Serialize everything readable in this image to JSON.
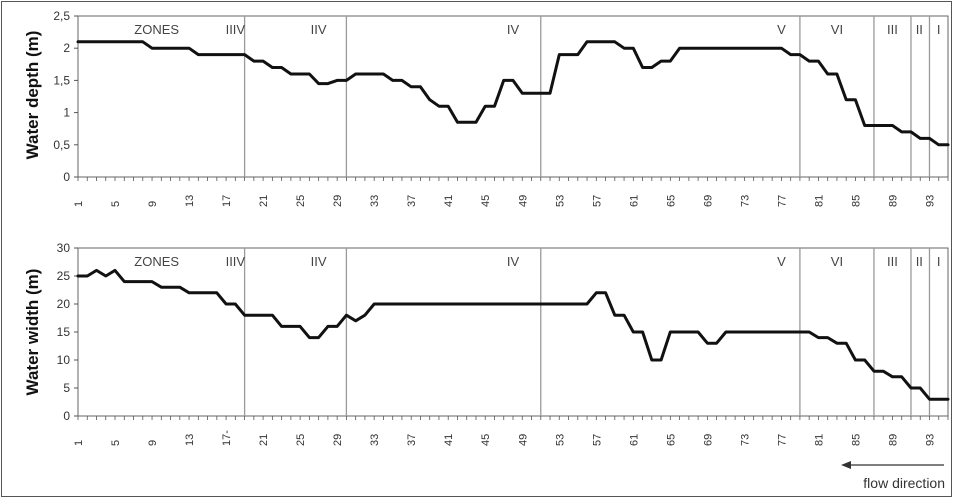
{
  "chart_data": [
    {
      "type": "line",
      "ylabel": "Water depth (m)",
      "ylim": [
        0,
        2.5
      ],
      "y_ticks": [
        "0",
        "0,5",
        "1",
        "1,5",
        "2",
        "2,5"
      ],
      "x_ticks": [
        "1",
        "5",
        "9",
        "13",
        "17",
        "21",
        "25",
        "29",
        "33",
        "37",
        "41",
        "45",
        "49",
        "53",
        "57",
        "61",
        "65",
        "69",
        "73",
        "77",
        "81",
        "85",
        "89",
        "93"
      ],
      "xlim": [
        1,
        95
      ],
      "zone_boundaries": [
        19,
        30,
        51,
        79,
        87,
        91,
        93
      ],
      "zone_header": "ZONES",
      "zone_labels": [
        {
          "label": "IIIV",
          "x": 18
        },
        {
          "label": "IIV",
          "x": 27
        },
        {
          "label": "IV",
          "x": 48
        },
        {
          "label": "V",
          "x": 77
        },
        {
          "label": "VI",
          "x": 83
        },
        {
          "label": "III",
          "x": 89
        },
        {
          "label": "II",
          "x": 91.9
        },
        {
          "label": "I",
          "x": 94
        }
      ],
      "series": [
        {
          "x": [
            1,
            2,
            3,
            4,
            5,
            6,
            7,
            8,
            9,
            10,
            11,
            12,
            13,
            14,
            15,
            16,
            17,
            18,
            19,
            20,
            21,
            22,
            23,
            24,
            25,
            26,
            27,
            28,
            29,
            30,
            31,
            32,
            33,
            34,
            35,
            36,
            37,
            38,
            39,
            40,
            41,
            42,
            43,
            44,
            45,
            46,
            47,
            48,
            49,
            50,
            51,
            52,
            53,
            54,
            55,
            56,
            57,
            58,
            59,
            60,
            61,
            62,
            63,
            64,
            65,
            66,
            67,
            68,
            69,
            70,
            71,
            72,
            73,
            74,
            75,
            76,
            77,
            78,
            79,
            80,
            81,
            82,
            83,
            84,
            85,
            86,
            87,
            88,
            89,
            90,
            91,
            92,
            93,
            94,
            95
          ],
          "values": [
            2.1,
            2.1,
            2.1,
            2.1,
            2.1,
            2.1,
            2.1,
            2.1,
            2.0,
            2.0,
            2.0,
            2.0,
            2.0,
            1.9,
            1.9,
            1.9,
            1.9,
            1.9,
            1.9,
            1.8,
            1.8,
            1.7,
            1.7,
            1.6,
            1.6,
            1.6,
            1.45,
            1.45,
            1.5,
            1.5,
            1.6,
            1.6,
            1.6,
            1.6,
            1.5,
            1.5,
            1.4,
            1.4,
            1.2,
            1.1,
            1.1,
            0.85,
            0.85,
            0.85,
            1.1,
            1.1,
            1.5,
            1.5,
            1.3,
            1.3,
            1.3,
            1.3,
            1.9,
            1.9,
            1.9,
            2.1,
            2.1,
            2.1,
            2.1,
            2.0,
            2.0,
            1.7,
            1.7,
            1.8,
            1.8,
            2.0,
            2.0,
            2.0,
            2.0,
            2.0,
            2.0,
            2.0,
            2.0,
            2.0,
            2.0,
            2.0,
            2.0,
            1.9,
            1.9,
            1.8,
            1.8,
            1.6,
            1.6,
            1.2,
            1.2,
            0.8,
            0.8,
            0.8,
            0.8,
            0.7,
            0.7,
            0.6,
            0.6,
            0.5,
            0.5
          ]
        }
      ]
    },
    {
      "type": "line",
      "ylabel": "Water width (m)",
      "ylim": [
        0,
        30
      ],
      "y_ticks": [
        "0",
        "5",
        "10",
        "15",
        "20",
        "25",
        "30"
      ],
      "x_ticks": [
        "1",
        "5",
        "9",
        "13",
        "17-",
        "21",
        "25",
        "29",
        "33",
        "37",
        "41",
        "45",
        "49",
        "53",
        "57",
        "61",
        "65",
        "69",
        "73",
        "77",
        "81",
        "85",
        "89",
        "93"
      ],
      "xlim": [
        1,
        95
      ],
      "zone_boundaries": [
        19,
        30,
        51,
        79,
        87,
        91,
        93
      ],
      "zone_header": "ZONES",
      "zone_labels": [
        {
          "label": "IIIV",
          "x": 18
        },
        {
          "label": "IIV",
          "x": 27
        },
        {
          "label": "IV",
          "x": 48
        },
        {
          "label": "V",
          "x": 77
        },
        {
          "label": "VI",
          "x": 83
        },
        {
          "label": "III",
          "x": 89
        },
        {
          "label": "II",
          "x": 91.9
        },
        {
          "label": "I",
          "x": 94
        }
      ],
      "series": [
        {
          "x": [
            1,
            2,
            3,
            4,
            5,
            6,
            7,
            8,
            9,
            10,
            11,
            12,
            13,
            14,
            15,
            16,
            17,
            18,
            19,
            20,
            21,
            22,
            23,
            24,
            25,
            26,
            27,
            28,
            29,
            30,
            31,
            32,
            33,
            34,
            35,
            36,
            37,
            38,
            39,
            40,
            41,
            42,
            43,
            44,
            45,
            46,
            47,
            48,
            49,
            50,
            51,
            52,
            53,
            54,
            55,
            56,
            57,
            58,
            59,
            60,
            61,
            62,
            63,
            64,
            65,
            66,
            67,
            68,
            69,
            70,
            71,
            72,
            73,
            74,
            75,
            76,
            77,
            78,
            79,
            80,
            81,
            82,
            83,
            84,
            85,
            86,
            87,
            88,
            89,
            90,
            91,
            92,
            93,
            94,
            95
          ],
          "values": [
            25,
            25,
            26,
            25,
            26,
            24,
            24,
            24,
            24,
            23,
            23,
            23,
            22,
            22,
            22,
            22,
            20,
            20,
            18,
            18,
            18,
            18,
            16,
            16,
            16,
            14,
            14,
            16,
            16,
            18,
            17,
            18,
            20,
            20,
            20,
            20,
            20,
            20,
            20,
            20,
            20,
            20,
            20,
            20,
            20,
            20,
            20,
            20,
            20,
            20,
            20,
            20,
            20,
            20,
            20,
            20,
            22,
            22,
            18,
            18,
            15,
            15,
            10,
            10,
            15,
            15,
            15,
            15,
            13,
            13,
            15,
            15,
            15,
            15,
            15,
            15,
            15,
            15,
            15,
            15,
            14,
            14,
            13,
            13,
            10,
            10,
            8,
            8,
            7,
            7,
            5,
            5,
            3,
            3,
            3
          ]
        }
      ]
    }
  ],
  "flow_label": "flow direction"
}
